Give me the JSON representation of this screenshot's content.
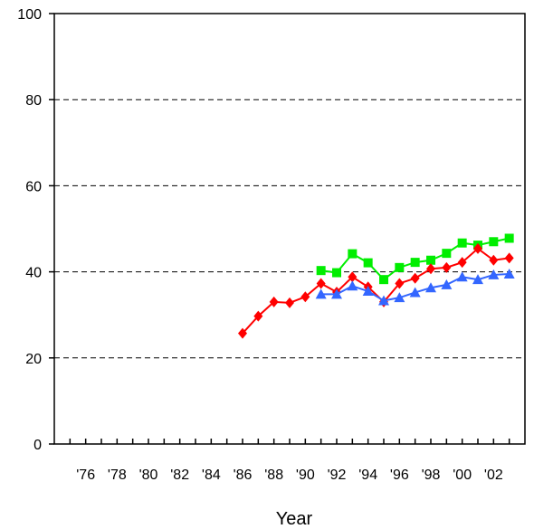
{
  "chart_data": {
    "type": "line",
    "title": "",
    "xlabel": "Year",
    "ylabel": "",
    "ylim": [
      0,
      100
    ],
    "y_ticks": [
      0,
      20,
      40,
      60,
      80,
      100
    ],
    "y_tick_labels": [
      "0",
      "20",
      "40",
      "60",
      "80",
      "100"
    ],
    "x_range": [
      1974,
      2004
    ],
    "x_tick_labels": [
      {
        "year": 1976,
        "label": "'76"
      },
      {
        "year": 1978,
        "label": "'78"
      },
      {
        "year": 1980,
        "label": "'80"
      },
      {
        "year": 1982,
        "label": "'82"
      },
      {
        "year": 1984,
        "label": "'84"
      },
      {
        "year": 1986,
        "label": "'86"
      },
      {
        "year": 1988,
        "label": "'88"
      },
      {
        "year": 1990,
        "label": "'90"
      },
      {
        "year": 1992,
        "label": "'92"
      },
      {
        "year": 1994,
        "label": "'94"
      },
      {
        "year": 1996,
        "label": "'96"
      },
      {
        "year": 1998,
        "label": "'98"
      },
      {
        "year": 2000,
        "label": "'00"
      },
      {
        "year": 2002,
        "label": "'02"
      }
    ],
    "grid": "horizontal dashed",
    "series": [
      {
        "color": "#00ee00",
        "marker": "square",
        "x": [
          1991,
          1992,
          1993,
          1994,
          1995,
          1996,
          1997,
          1998,
          1999,
          2000,
          2001,
          2002,
          2003
        ],
        "values": [
          40.3,
          39.8,
          44.2,
          42.1,
          38.2,
          41.0,
          42.2,
          42.7,
          44.3,
          46.7,
          46.2,
          47.0,
          47.8
        ]
      },
      {
        "color": "#ff0000",
        "marker": "diamond",
        "x": [
          1986,
          1987,
          1988,
          1989,
          1990,
          1991,
          1992,
          1993,
          1994,
          1995,
          1996,
          1997,
          1998,
          1999,
          2000,
          2001,
          2002,
          2003
        ],
        "values": [
          25.7,
          29.7,
          33.0,
          32.8,
          34.2,
          37.3,
          35.3,
          38.8,
          36.5,
          33.0,
          37.3,
          38.5,
          40.7,
          41.0,
          42.2,
          45.4,
          42.7,
          43.2
        ]
      },
      {
        "color": "#3366ff",
        "marker": "triangle",
        "x": [
          1991,
          1992,
          1993,
          1994,
          1995,
          1996,
          1997,
          1998,
          1999,
          2000,
          2001,
          2002,
          2003
        ],
        "values": [
          34.8,
          34.8,
          36.7,
          35.5,
          33.3,
          34.0,
          35.2,
          36.3,
          37.0,
          38.8,
          38.2,
          39.3,
          39.5
        ]
      }
    ]
  }
}
